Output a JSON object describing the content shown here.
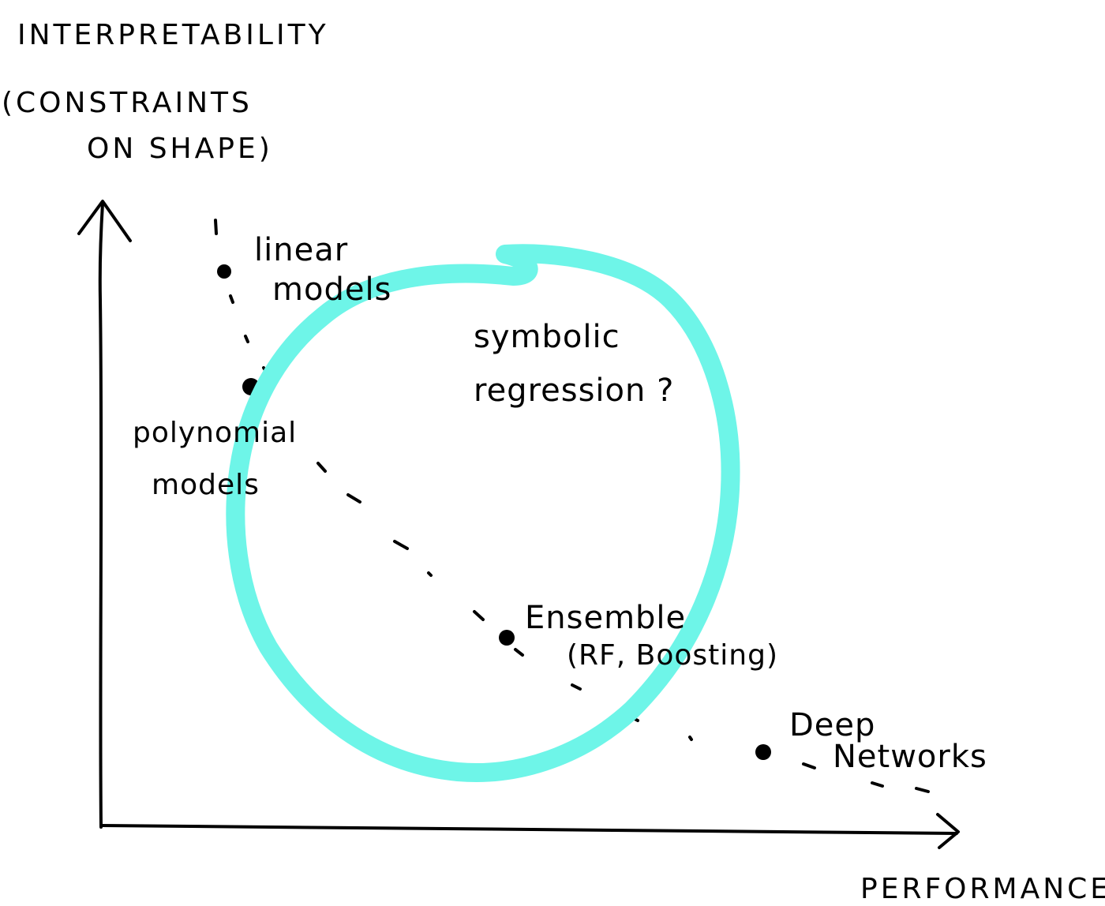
{
  "axes": {
    "y_label_lines": [
      "INTERPRETABILITY",
      "(CONSTRAINTS",
      "ON SHAPE)"
    ],
    "x_label": "PERFORMANCE"
  },
  "models": [
    {
      "id": "linear",
      "label_lines": [
        "linear",
        "models"
      ]
    },
    {
      "id": "polynomial",
      "label_lines": [
        "polynomial",
        "models"
      ]
    },
    {
      "id": "ensemble",
      "label_lines": [
        "Ensemble",
        "(RF, Boosting)"
      ]
    },
    {
      "id": "deep",
      "label_lines": [
        "Deep",
        "Networks"
      ]
    }
  ],
  "highlight": {
    "label_lines": [
      "symbolic",
      "regression ?"
    ]
  },
  "colors": {
    "ink": "#000000",
    "highlight": "#6ef5e8",
    "background": "#ffffff"
  }
}
